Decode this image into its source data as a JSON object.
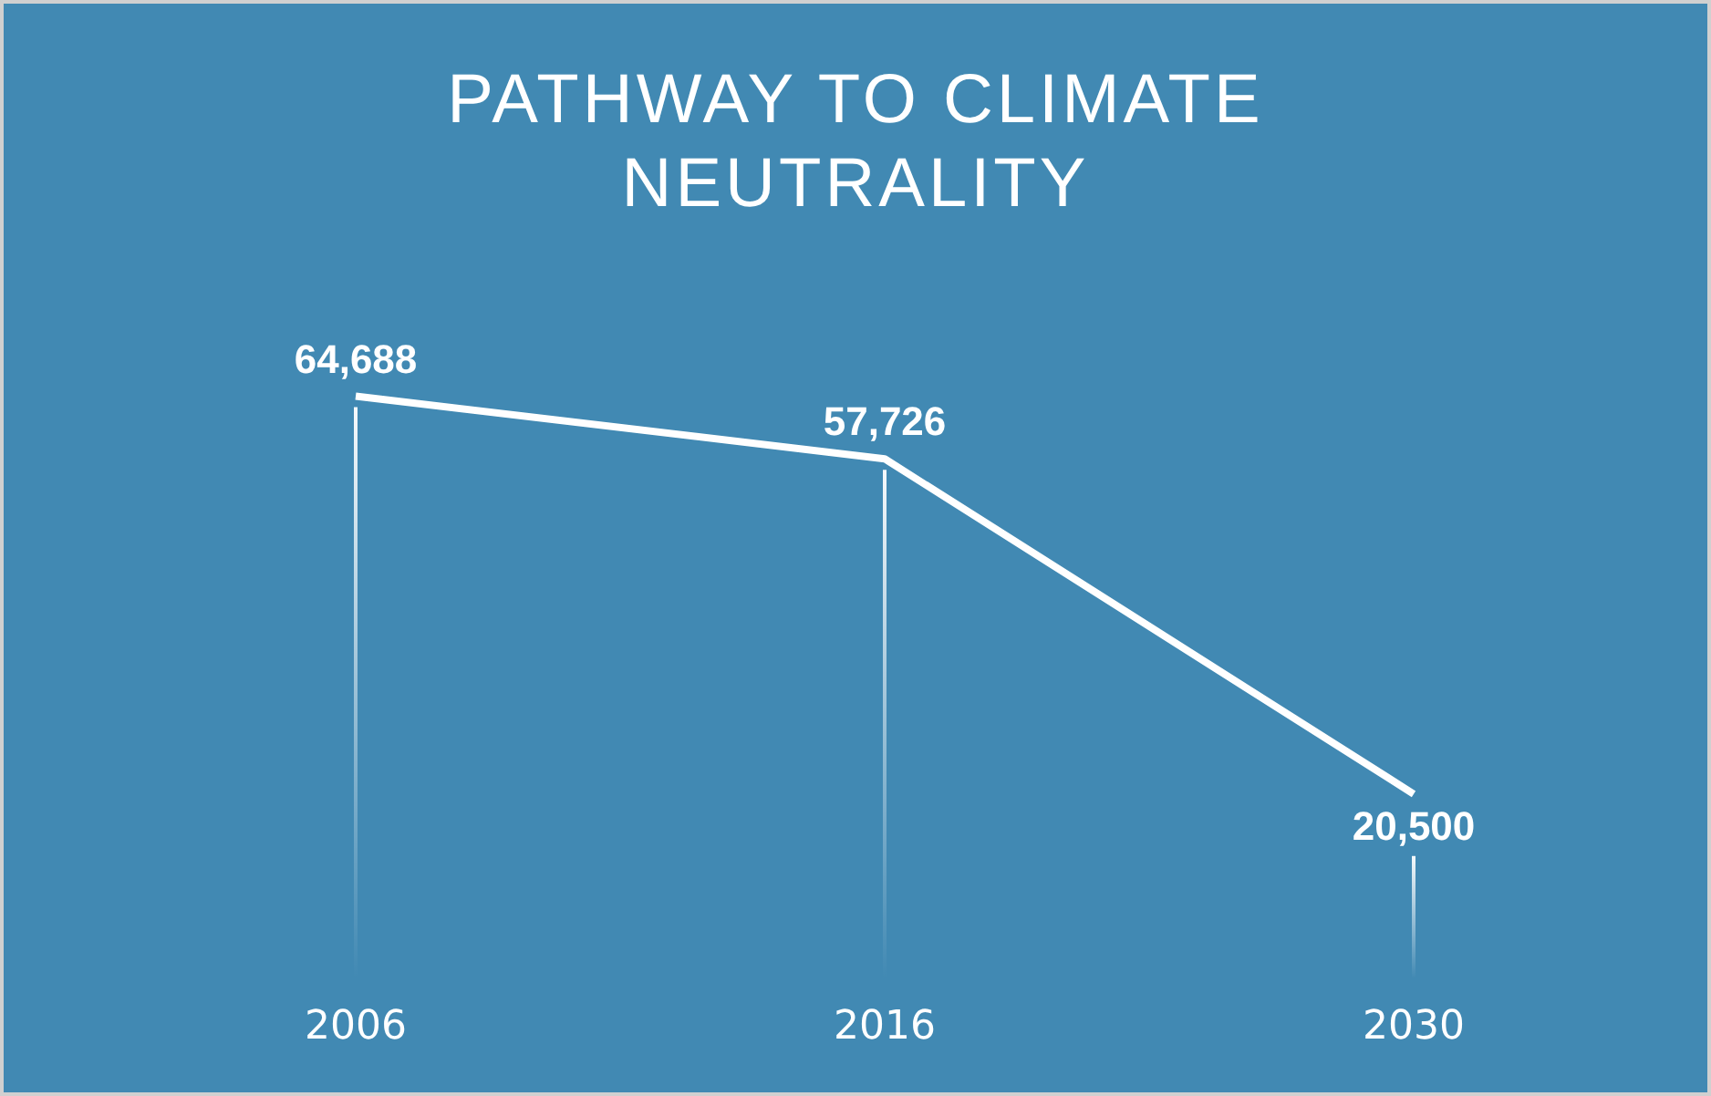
{
  "chart_data": {
    "type": "line",
    "title": "PATHWAY TO CLIMATE NEUTRALITY",
    "categories": [
      "2006",
      "2016",
      "2030"
    ],
    "series": [
      {
        "color": "#ffffff",
        "values": [
          64688,
          57726,
          20500
        ],
        "value_labels": [
          "64,688",
          "57,726",
          "20,500"
        ]
      }
    ],
    "tick_labels": "x",
    "grid": "x",
    "legend": false,
    "line_style": "solid"
  }
}
